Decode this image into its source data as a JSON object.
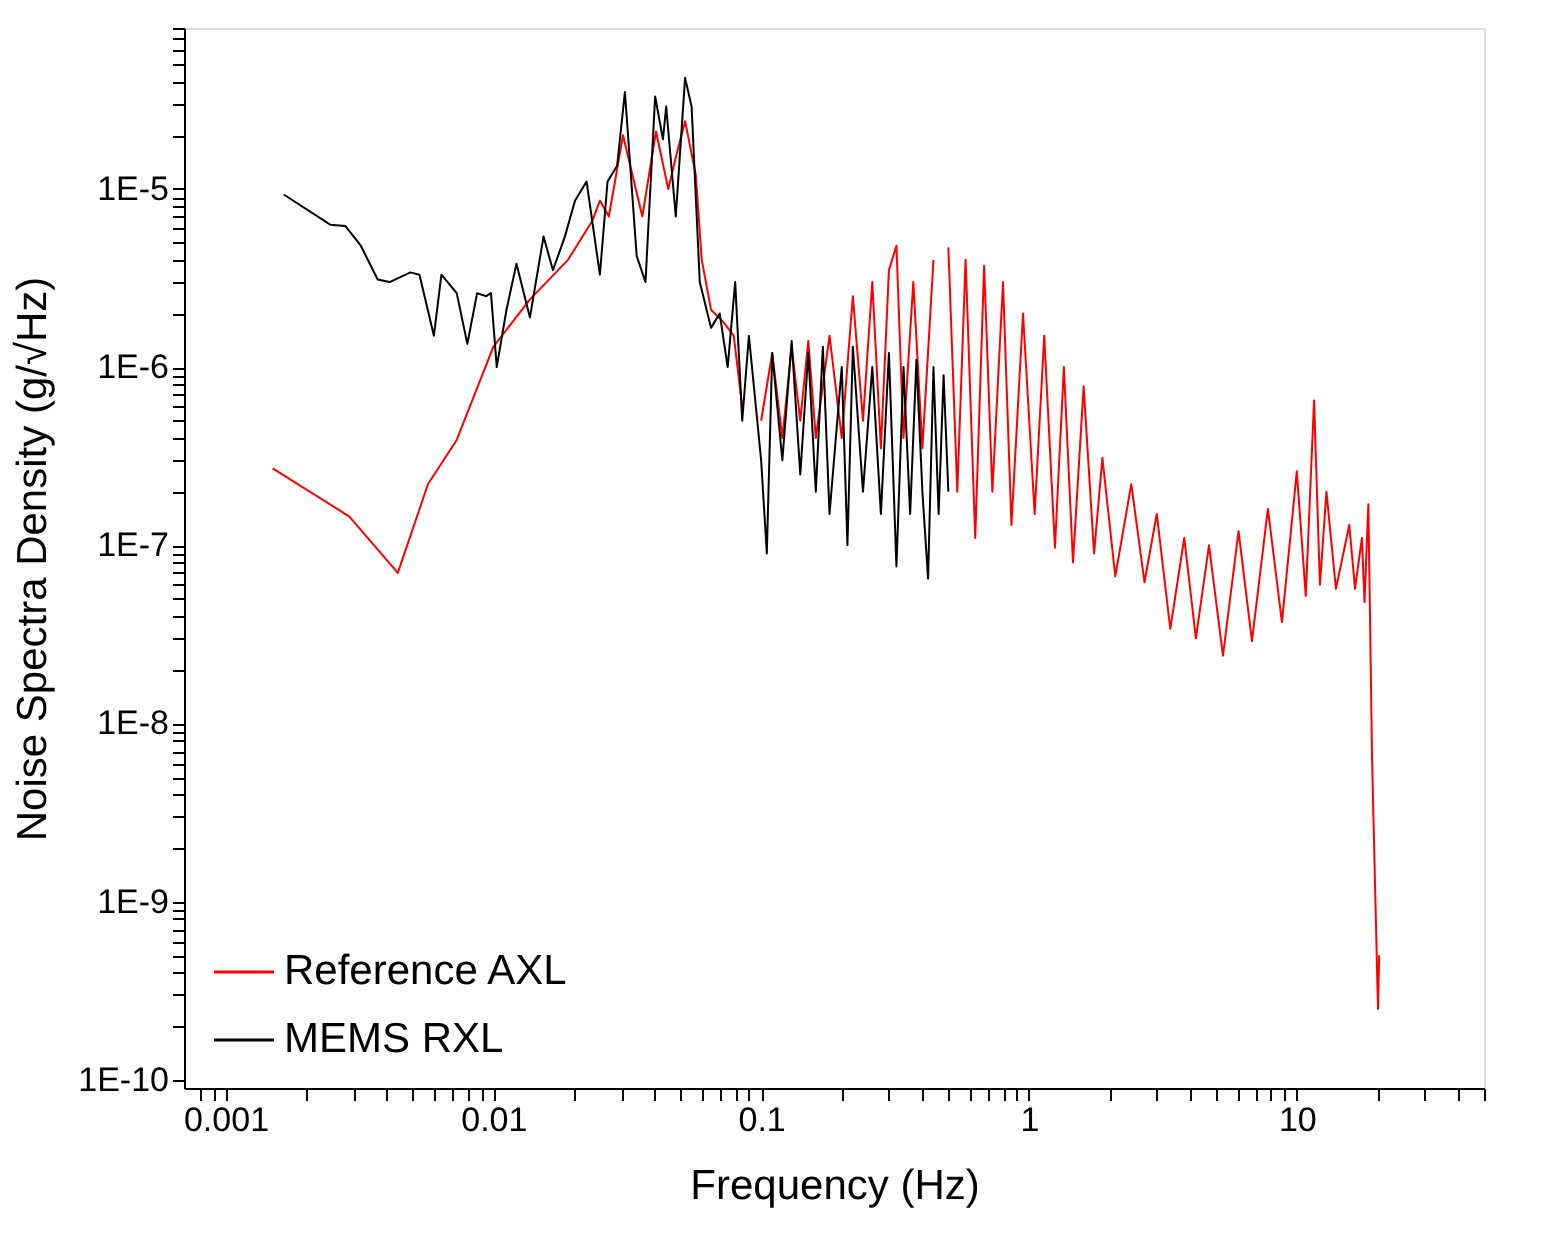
{
  "chart_data": {
    "type": "line",
    "xlabel": "Frequency (Hz)",
    "ylabel": "Noise Spectra Density (g/√Hz)",
    "log": "xy",
    "grid": false,
    "legend": "bottom left",
    "marker": "none",
    "line_style": "solid",
    "xlim": [
      0.0007,
      50
    ],
    "ylim": [
      9e-11,
      8e-05
    ],
    "xticks": [
      {
        "value": 0.0008,
        "label": null
      },
      {
        "value": 0.0009,
        "label": null
      },
      0.001,
      {
        "value": 0.002,
        "label": null
      },
      {
        "value": 0.003,
        "label": null
      },
      {
        "value": 0.004,
        "label": null
      },
      {
        "value": 0.005,
        "label": null
      },
      {
        "value": 0.006,
        "label": null
      },
      {
        "value": 0.007,
        "label": null
      },
      {
        "value": 0.008,
        "label": null
      },
      {
        "value": 0.009,
        "label": null
      },
      0.01,
      {
        "value": 0.02,
        "label": null
      },
      {
        "value": 0.03,
        "label": null
      },
      {
        "value": 0.04,
        "label": null
      },
      {
        "value": 0.05,
        "label": null
      },
      {
        "value": 0.06,
        "label": null
      },
      {
        "value": 0.07,
        "label": null
      },
      {
        "value": 0.08,
        "label": null
      },
      {
        "value": 0.09,
        "label": null
      },
      0.1,
      {
        "value": 0.2,
        "label": null
      },
      {
        "value": 0.3,
        "label": null
      },
      {
        "value": 0.4,
        "label": null
      },
      {
        "value": 0.5,
        "label": null
      },
      {
        "value": 0.6,
        "label": null
      },
      {
        "value": 0.7,
        "label": null
      },
      {
        "value": 0.8,
        "label": null
      },
      {
        "value": 0.9,
        "label": null
      },
      1,
      {
        "value": 2,
        "label": null
      },
      {
        "value": 3,
        "label": null
      },
      {
        "value": 4,
        "label": null
      },
      {
        "value": 5,
        "label": null
      },
      {
        "value": 6,
        "label": null
      },
      {
        "value": 7,
        "label": null
      },
      {
        "value": 8,
        "label": null
      },
      {
        "value": 9,
        "label": null
      },
      10,
      {
        "value": 20,
        "label": null
      },
      {
        "value": 30,
        "label": null
      },
      {
        "value": 40,
        "label": null
      },
      {
        "value": 50,
        "label": null
      }
    ],
    "yticks": [
      {
        "value": 1e-10,
        "label": "1E-10"
      },
      {
        "value": 2e-10,
        "label": null
      },
      {
        "value": 3e-10,
        "label": null
      },
      {
        "value": 4e-10,
        "label": null
      },
      {
        "value": 5e-10,
        "label": null
      },
      {
        "value": 6e-10,
        "label": null
      },
      {
        "value": 7e-10,
        "label": null
      },
      {
        "value": 8e-10,
        "label": null
      },
      {
        "value": 9e-10,
        "label": null
      },
      {
        "value": 1e-09,
        "label": "1E-9"
      },
      {
        "value": 2e-09,
        "label": null
      },
      {
        "value": 3e-09,
        "label": null
      },
      {
        "value": 4e-09,
        "label": null
      },
      {
        "value": 5e-09,
        "label": null
      },
      {
        "value": 6e-09,
        "label": null
      },
      {
        "value": 7e-09,
        "label": null
      },
      {
        "value": 8e-09,
        "label": null
      },
      {
        "value": 9e-09,
        "label": null
      },
      {
        "value": 1e-08,
        "label": "1E-8"
      },
      {
        "value": 2e-08,
        "label": null
      },
      {
        "value": 3e-08,
        "label": null
      },
      {
        "value": 4e-08,
        "label": null
      },
      {
        "value": 5e-08,
        "label": null
      },
      {
        "value": 6e-08,
        "label": null
      },
      {
        "value": 7e-08,
        "label": null
      },
      {
        "value": 8e-08,
        "label": null
      },
      {
        "value": 9e-08,
        "label": null
      },
      {
        "value": 1e-07,
        "label": "1E-7"
      },
      {
        "value": 2e-07,
        "label": null
      },
      {
        "value": 3e-07,
        "label": null
      },
      {
        "value": 4e-07,
        "label": null
      },
      {
        "value": 5e-07,
        "label": null
      },
      {
        "value": 6e-07,
        "label": null
      },
      {
        "value": 7e-07,
        "label": null
      },
      {
        "value": 8e-07,
        "label": null
      },
      {
        "value": 9e-07,
        "label": null
      },
      {
        "value": 1e-06,
        "label": "1E-6"
      },
      {
        "value": 2e-06,
        "label": null
      },
      {
        "value": 3e-06,
        "label": null
      },
      {
        "value": 4e-06,
        "label": null
      },
      {
        "value": 5e-06,
        "label": null
      },
      {
        "value": 6e-06,
        "label": null
      },
      {
        "value": 7e-06,
        "label": null
      },
      {
        "value": 8e-06,
        "label": null
      },
      {
        "value": 9e-06,
        "label": null
      },
      {
        "value": 1e-05,
        "label": "1E-5"
      },
      {
        "value": 2e-05,
        "label": null
      },
      {
        "value": 3e-05,
        "label": null
      },
      {
        "value": 4e-05,
        "label": null
      },
      {
        "value": 5e-05,
        "label": null
      },
      {
        "value": 6e-05,
        "label": null
      },
      {
        "value": 7e-05,
        "label": null
      },
      {
        "value": 8e-05,
        "label": null
      }
    ],
    "series": [
      {
        "name": "Reference AXL",
        "color": "#ff0000",
        "x": [
          0.0015,
          0.0029,
          0.0044,
          0.0057,
          0.0073,
          0.01,
          0.0137,
          0.019,
          0.0234,
          0.025,
          0.027,
          0.0305,
          0.036,
          0.0405,
          0.045,
          0.048,
          0.052,
          0.057,
          0.06,
          0.065,
          0.072,
          0.079,
          0.085,
          0.09,
          0.1,
          0.11,
          0.12,
          0.13,
          0.14,
          0.15,
          0.16,
          0.18,
          0.2,
          0.22,
          0.24,
          0.26,
          0.28,
          0.3,
          0.32,
          0.34,
          0.37,
          0.4,
          0.44,
          0.47,
          0.5,
          0.54,
          0.58,
          0.63,
          0.68,
          0.73,
          0.8,
          0.86,
          0.95,
          1.05,
          1.14,
          1.25,
          1.35,
          1.46,
          1.6,
          1.75,
          1.88,
          2.1,
          2.41,
          2.7,
          3.0,
          3.37,
          3.8,
          4.2,
          4.7,
          5.3,
          6.06,
          6.8,
          7.8,
          8.8,
          10,
          10.8,
          11.6,
          12.2,
          12.9,
          14,
          15.7,
          16.5,
          17.5,
          17.9,
          18.5,
          19.1,
          20.1,
          20.3
        ],
        "values": [
          2.7e-07,
          1.45e-07,
          7e-08,
          2.2e-07,
          3.9e-07,
          1.3e-06,
          2.4e-06,
          4e-06,
          6.6e-06,
          8.6e-06,
          7e-06,
          2e-05,
          7e-06,
          2.1e-05,
          1e-05,
          1.5e-05,
          2.4e-05,
          1.2e-05,
          4e-06,
          2.1e-06,
          1.8e-06,
          1.5e-06,
          6e-07,
          null,
          5e-07,
          1.2e-06,
          4e-07,
          1.3e-06,
          5e-07,
          1.4e-06,
          4e-07,
          1.5e-06,
          4e-07,
          2.5e-06,
          5e-07,
          3e-06,
          3.5e-07,
          3.5e-06,
          4.8e-06,
          4e-07,
          3e-06,
          3.5e-07,
          4e-06,
          null,
          4.7e-06,
          2e-07,
          4e-06,
          1.1e-07,
          3.7e-06,
          2e-07,
          3e-06,
          1.3e-07,
          2e-06,
          1.5e-07,
          1.5e-06,
          9.7e-08,
          1e-06,
          8e-08,
          7.8e-07,
          9e-08,
          3.1e-07,
          6.7e-08,
          2.2e-07,
          6.2e-08,
          1.5e-07,
          3.4e-08,
          1.1e-07,
          3e-08,
          1e-07,
          2.4e-08,
          1.2e-07,
          2.9e-08,
          1.6e-07,
          3.7e-08,
          2.6e-07,
          5.2e-08,
          6.5e-07,
          6e-08,
          2e-07,
          5.7e-08,
          1.3e-07,
          5.7e-08,
          1.1e-07,
          4.8e-08,
          1.7e-07,
          6.3e-09,
          2.5e-10,
          5e-10
        ]
      },
      {
        "name": "MEMS RXL",
        "color": "#000000",
        "x": [
          0.00165,
          0.00246,
          0.0028,
          0.0032,
          0.0037,
          0.0041,
          0.0049,
          0.0053,
          0.006,
          0.0064,
          0.0073,
          0.008,
          0.0087,
          0.0094,
          0.0098,
          0.0103,
          0.0112,
          0.0122,
          0.0137,
          0.0154,
          0.0167,
          0.0185,
          0.0202,
          0.0223,
          0.025,
          0.0267,
          0.029,
          0.031,
          0.0343,
          0.037,
          0.0402,
          0.043,
          0.0442,
          0.048,
          0.052,
          0.055,
          0.059,
          0.065,
          0.07,
          0.075,
          0.08,
          0.085,
          0.09,
          0.1,
          0.105,
          0.11,
          0.12,
          0.13,
          0.14,
          0.15,
          0.16,
          0.17,
          0.18,
          0.2,
          0.21,
          0.22,
          0.24,
          0.26,
          0.28,
          0.3,
          0.32,
          0.34,
          0.36,
          0.38,
          0.4,
          0.42,
          0.44,
          0.46,
          0.48,
          0.5
        ],
        "values": [
          9.3e-06,
          6.3e-06,
          6.2e-06,
          4.8e-06,
          3.1e-06,
          3e-06,
          3.4e-06,
          3.3e-06,
          1.5e-06,
          3.3e-06,
          2.6e-06,
          1.35e-06,
          2.6e-06,
          2.5e-06,
          2.6e-06,
          1e-06,
          2.1e-06,
          3.8e-06,
          1.9e-06,
          5.4e-06,
          3.5e-06,
          5.4e-06,
          8.6e-06,
          1.1e-05,
          3.3e-06,
          1.1e-05,
          1.35e-05,
          3.5e-05,
          4.2e-06,
          3e-06,
          3.3e-05,
          1.9e-05,
          2.9e-05,
          7e-06,
          4.2e-05,
          2.9e-05,
          3e-06,
          1.66e-06,
          2e-06,
          1e-06,
          3e-06,
          5e-07,
          1.5e-06,
          3e-07,
          9e-08,
          1.2e-06,
          3e-07,
          1.4e-06,
          2.5e-07,
          1.2e-06,
          2e-07,
          1.3e-06,
          1.5e-07,
          1e-06,
          1e-07,
          1.3e-06,
          2e-07,
          1e-06,
          1.5e-07,
          1.2e-06,
          7.6e-08,
          1e-06,
          1.5e-07,
          1.1e-06,
          2e-07,
          6.5e-08,
          1e-06,
          1.5e-07,
          9e-07,
          2e-07
        ]
      }
    ]
  }
}
